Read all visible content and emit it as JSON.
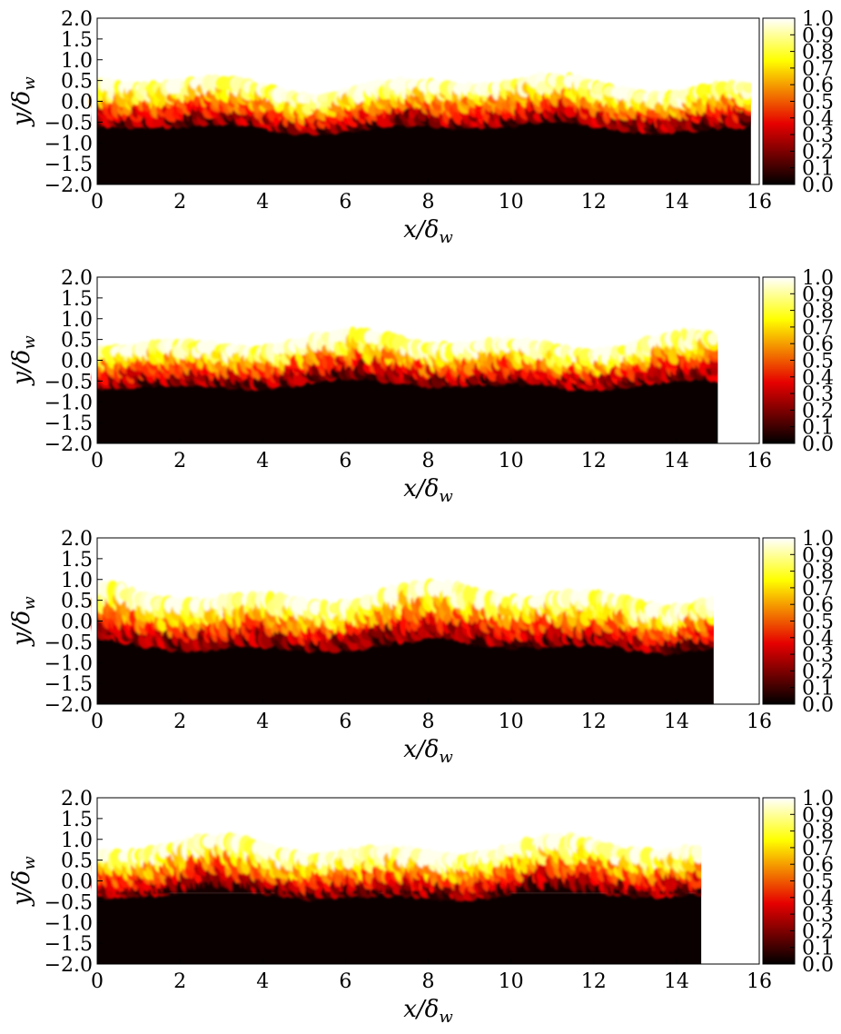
{
  "colors": {
    "hot_low": "#000000",
    "hot_mid": "#e60000",
    "hot_high": "#ffff00",
    "hot_max": "#ffffff",
    "background": "#ffffff"
  },
  "chart_data": [
    {
      "type": "heatmap",
      "colormap": "hot",
      "xlabel": "x/δ_w",
      "ylabel": "y/δ_w",
      "xlim": [
        0,
        16
      ],
      "ylim": [
        -2.0,
        2.0
      ],
      "x_ticks": [
        "0",
        "2",
        "4",
        "6",
        "8",
        "10",
        "12",
        "14",
        "16"
      ],
      "y_ticks": [
        "2.0",
        "1.5",
        "1.0",
        "0.5",
        "0.0",
        "−0.5",
        "−1.0",
        "−1.5",
        "−2.0"
      ],
      "colorbar_range": [
        0.0,
        1.0
      ],
      "colorbar_ticks": [
        "1.0",
        "0.9",
        "0.8",
        "0.7",
        "0.6",
        "0.5",
        "0.4",
        "0.3",
        "0.2",
        "0.1",
        "0.0"
      ],
      "data_extent_x": 15.8,
      "interface_mean_y": 0.0,
      "interface_amplitude_y": 0.55,
      "seed": 3
    },
    {
      "type": "heatmap",
      "colormap": "hot",
      "xlabel": "x/δ_w",
      "ylabel": "y/δ_w",
      "xlim": [
        0,
        16
      ],
      "ylim": [
        -2.0,
        2.0
      ],
      "x_ticks": [
        "0",
        "2",
        "4",
        "6",
        "8",
        "10",
        "12",
        "14",
        "16"
      ],
      "y_ticks": [
        "2.0",
        "1.5",
        "1.0",
        "0.5",
        "0.0",
        "−0.5",
        "−1.0",
        "−1.5",
        "−2.0"
      ],
      "colorbar_range": [
        0.0,
        1.0
      ],
      "colorbar_ticks": [
        "1.0",
        "0.9",
        "0.8",
        "0.7",
        "0.6",
        "0.5",
        "0.4",
        "0.3",
        "0.2",
        "0.1",
        "0.0"
      ],
      "data_extent_x": 15.0,
      "interface_mean_y": 0.05,
      "interface_amplitude_y": 0.55,
      "seed": 11
    },
    {
      "type": "heatmap",
      "colormap": "hot",
      "xlabel": "x/δ_w",
      "ylabel": "y/δ_w",
      "xlim": [
        0,
        16
      ],
      "ylim": [
        -2.0,
        2.0
      ],
      "x_ticks": [
        "0",
        "2",
        "4",
        "6",
        "8",
        "10",
        "12",
        "14",
        "16"
      ],
      "y_ticks": [
        "2.0",
        "1.5",
        "1.0",
        "0.5",
        "0.0",
        "−0.5",
        "−1.0",
        "−1.5",
        "−2.0"
      ],
      "colorbar_range": [
        0.0,
        1.0
      ],
      "colorbar_ticks": [
        "1.0",
        "0.9",
        "0.8",
        "0.7",
        "0.6",
        "0.5",
        "0.4",
        "0.3",
        "0.2",
        "0.1",
        "0.0"
      ],
      "data_extent_x": 14.9,
      "interface_mean_y": 0.15,
      "interface_amplitude_y": 0.65,
      "seed": 27
    },
    {
      "type": "heatmap",
      "colormap": "hot",
      "xlabel": "x/δ_w",
      "ylabel": "y/δ_w",
      "xlim": [
        0,
        16
      ],
      "ylim": [
        -2.0,
        2.0
      ],
      "x_ticks": [
        "0",
        "2",
        "4",
        "6",
        "8",
        "10",
        "12",
        "14",
        "16"
      ],
      "y_ticks": [
        "2.0",
        "1.5",
        "1.0",
        "0.5",
        "0.0",
        "−0.5",
        "−1.0",
        "−1.5",
        "−2.0"
      ],
      "colorbar_range": [
        0.0,
        1.0
      ],
      "colorbar_ticks": [
        "1.0",
        "0.9",
        "0.8",
        "0.7",
        "0.6",
        "0.5",
        "0.4",
        "0.3",
        "0.2",
        "0.1",
        "0.0"
      ],
      "data_extent_x": 14.6,
      "interface_mean_y": 0.35,
      "interface_amplitude_y": 0.6,
      "seed": 41
    }
  ]
}
